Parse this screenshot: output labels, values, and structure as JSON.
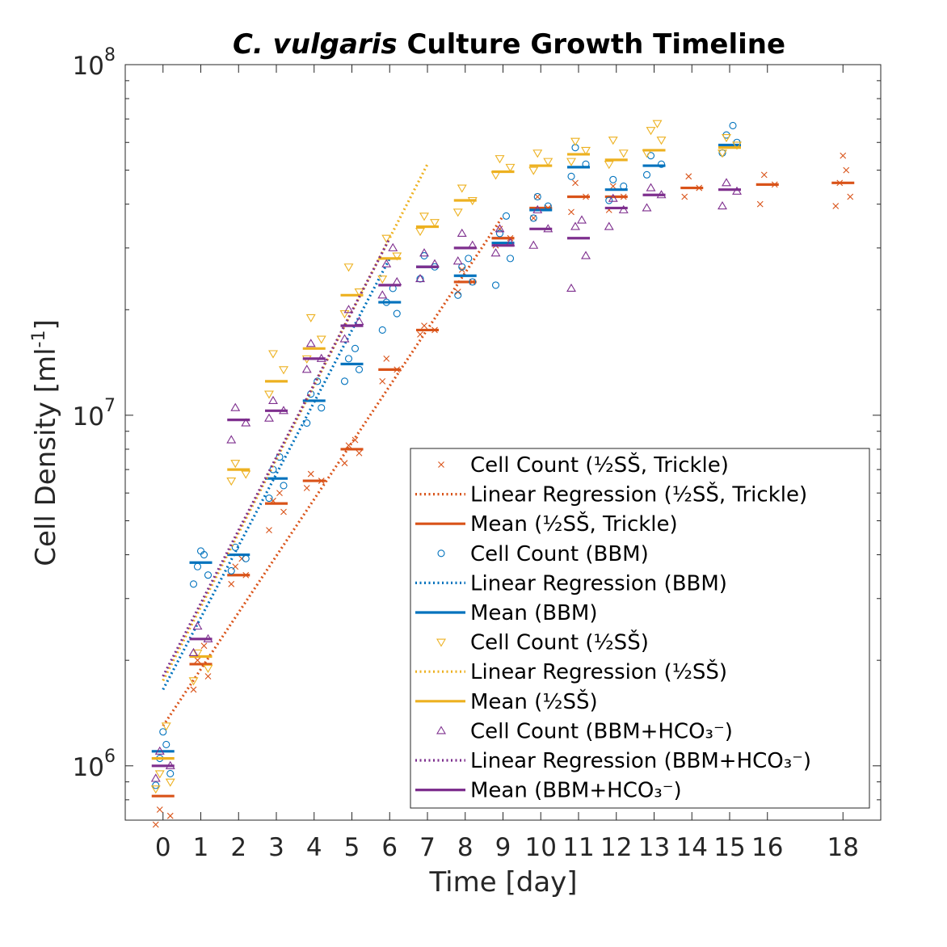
{
  "chart_data": {
    "type": "scatter",
    "title_italic": "C. vulgaris",
    "title_rest": " Culture Growth Timeline",
    "xlabel": "Time [day]",
    "ylabel_main": "Cell Density [ml",
    "ylabel_sup": "-1",
    "ylabel_end": "]",
    "y_scale": "log",
    "ylim": [
      700000,
      100000000
    ],
    "xlim": [
      -1,
      19
    ],
    "x_ticks": [
      0,
      1,
      2,
      3,
      4,
      5,
      6,
      7,
      8,
      9,
      10,
      11,
      12,
      13,
      14,
      15,
      16,
      18
    ],
    "y_ticks": [
      {
        "value": 1000000,
        "base": "10",
        "exp": "6"
      },
      {
        "value": 10000000,
        "base": "10",
        "exp": "7"
      },
      {
        "value": 100000000,
        "base": "10",
        "exp": "8"
      }
    ],
    "legend_position": "bottom-right",
    "series": [
      {
        "name": "½SŠ, Trickle",
        "color": "#D95319",
        "marker": "x",
        "means": [
          [
            0,
            820000
          ],
          [
            1,
            1950000
          ],
          [
            2,
            3500000
          ],
          [
            3,
            5600000
          ],
          [
            4,
            6500000
          ],
          [
            5,
            8000000
          ],
          [
            6,
            13500000
          ],
          [
            7,
            17500000
          ],
          [
            8,
            24000000
          ],
          [
            9,
            32000000
          ],
          [
            10,
            39000000
          ],
          [
            11,
            42000000
          ],
          [
            12,
            42000000
          ],
          [
            14,
            44500000
          ],
          [
            16,
            45500000
          ],
          [
            18,
            46000000
          ]
        ],
        "points": [
          [
            0,
            680000
          ],
          [
            0,
            720000
          ],
          [
            0,
            750000
          ],
          [
            1,
            1650000
          ],
          [
            1,
            1800000
          ],
          [
            1,
            2000000
          ],
          [
            1,
            2200000
          ],
          [
            2,
            3300000
          ],
          [
            2,
            3500000
          ],
          [
            2,
            3700000
          ],
          [
            2,
            3900000
          ],
          [
            3,
            4700000
          ],
          [
            3,
            5300000
          ],
          [
            3,
            5700000
          ],
          [
            3,
            6000000
          ],
          [
            4,
            6200000
          ],
          [
            4,
            6500000
          ],
          [
            4,
            6800000
          ],
          [
            5,
            7300000
          ],
          [
            5,
            7800000
          ],
          [
            5,
            8200000
          ],
          [
            5,
            8500000
          ],
          [
            6,
            12500000
          ],
          [
            6,
            13500000
          ],
          [
            6,
            14500000
          ],
          [
            7,
            17000000
          ],
          [
            7,
            17500000
          ],
          [
            7,
            18000000
          ],
          [
            8,
            22500000
          ],
          [
            8,
            24000000
          ],
          [
            8,
            26000000
          ],
          [
            9,
            30500000
          ],
          [
            9,
            32000000
          ],
          [
            9,
            34000000
          ],
          [
            10,
            36500000
          ],
          [
            10,
            39000000
          ],
          [
            10,
            42000000
          ],
          [
            11,
            38000000
          ],
          [
            11,
            42000000
          ],
          [
            11,
            46000000
          ],
          [
            12,
            38500000
          ],
          [
            12,
            42000000
          ],
          [
            12,
            45000000
          ],
          [
            14,
            42000000
          ],
          [
            14,
            44500000
          ],
          [
            14,
            48000000
          ],
          [
            16,
            40000000
          ],
          [
            16,
            45500000
          ],
          [
            16,
            48500000
          ],
          [
            18,
            39500000
          ],
          [
            18,
            42000000
          ],
          [
            18,
            46000000
          ],
          [
            18,
            50000000
          ],
          [
            18,
            55000000
          ]
        ],
        "regression": [
          [
            0,
            1300000
          ],
          [
            9,
            37000000
          ]
        ]
      },
      {
        "name": "BBM",
        "color": "#0072BD",
        "marker": "o",
        "means": [
          [
            0,
            1100000
          ],
          [
            1,
            3800000
          ],
          [
            2,
            4000000
          ],
          [
            3,
            6600000
          ],
          [
            4,
            11000000
          ],
          [
            5,
            14000000
          ],
          [
            6,
            21000000
          ],
          [
            7,
            26500000
          ],
          [
            8,
            25000000
          ],
          [
            9,
            31000000
          ],
          [
            10,
            38500000
          ],
          [
            11,
            51000000
          ],
          [
            12,
            44000000
          ],
          [
            13,
            51500000
          ],
          [
            15,
            59000000
          ]
        ],
        "points": [
          [
            0,
            880000
          ],
          [
            0,
            950000
          ],
          [
            0,
            1050000
          ],
          [
            0,
            1150000
          ],
          [
            0,
            1250000
          ],
          [
            1,
            3300000
          ],
          [
            1,
            3500000
          ],
          [
            1,
            3700000
          ],
          [
            1,
            4000000
          ],
          [
            1,
            4100000
          ],
          [
            2,
            3600000
          ],
          [
            2,
            3900000
          ],
          [
            2,
            4200000
          ],
          [
            3,
            5800000
          ],
          [
            3,
            6300000
          ],
          [
            3,
            7000000
          ],
          [
            3,
            7600000
          ],
          [
            4,
            9500000
          ],
          [
            4,
            10500000
          ],
          [
            4,
            11500000
          ],
          [
            4,
            12500000
          ],
          [
            5,
            12500000
          ],
          [
            5,
            13500000
          ],
          [
            5,
            14500000
          ],
          [
            5,
            15500000
          ],
          [
            6,
            17500000
          ],
          [
            6,
            19500000
          ],
          [
            6,
            21000000
          ],
          [
            6,
            23000000
          ],
          [
            7,
            24500000
          ],
          [
            7,
            26500000
          ],
          [
            7,
            28500000
          ],
          [
            8,
            22000000
          ],
          [
            8,
            24000000
          ],
          [
            8,
            26500000
          ],
          [
            8,
            28000000
          ],
          [
            9,
            23500000
          ],
          [
            9,
            28000000
          ],
          [
            9,
            33000000
          ],
          [
            9,
            37000000
          ],
          [
            10,
            36500000
          ],
          [
            10,
            39500000
          ],
          [
            10,
            42000000
          ],
          [
            11,
            48000000
          ],
          [
            11,
            52000000
          ],
          [
            11,
            58000000
          ],
          [
            12,
            41000000
          ],
          [
            12,
            45000000
          ],
          [
            12,
            47000000
          ],
          [
            13,
            48500000
          ],
          [
            13,
            52000000
          ],
          [
            13,
            55000000
          ],
          [
            15,
            56000000
          ],
          [
            15,
            60000000
          ],
          [
            15,
            63000000
          ],
          [
            15,
            67000000
          ]
        ],
        "regression": [
          [
            0,
            1650000
          ],
          [
            6,
            28000000
          ]
        ]
      },
      {
        "name": "½SŠ",
        "color": "#EDB120",
        "marker": "v",
        "means": [
          [
            0,
            1050000
          ],
          [
            1,
            2050000
          ],
          [
            2,
            7000000
          ],
          [
            3,
            12500000
          ],
          [
            4,
            15500000
          ],
          [
            5,
            22000000
          ],
          [
            6,
            28000000
          ],
          [
            7,
            34500000
          ],
          [
            8,
            41000000
          ],
          [
            9,
            49500000
          ],
          [
            10,
            51500000
          ],
          [
            11,
            55500000
          ],
          [
            12,
            53500000
          ],
          [
            13,
            57000000
          ],
          [
            15,
            58000000
          ]
        ],
        "points": [
          [
            0,
            860000
          ],
          [
            0,
            900000
          ],
          [
            0,
            950000
          ],
          [
            0,
            1300000
          ],
          [
            1,
            1750000
          ],
          [
            1,
            1900000
          ],
          [
            1,
            2100000
          ],
          [
            2,
            6500000
          ],
          [
            2,
            6800000
          ],
          [
            2,
            7300000
          ],
          [
            3,
            11500000
          ],
          [
            3,
            13500000
          ],
          [
            3,
            15000000
          ],
          [
            4,
            14500000
          ],
          [
            4,
            16500000
          ],
          [
            4,
            19000000
          ],
          [
            5,
            19500000
          ],
          [
            5,
            22500000
          ],
          [
            5,
            26500000
          ],
          [
            6,
            24500000
          ],
          [
            6,
            28500000
          ],
          [
            6,
            32000000
          ],
          [
            7,
            33500000
          ],
          [
            7,
            35500000
          ],
          [
            7,
            37000000
          ],
          [
            8,
            38000000
          ],
          [
            8,
            41000000
          ],
          [
            8,
            44500000
          ],
          [
            9,
            48500000
          ],
          [
            9,
            51000000
          ],
          [
            9,
            54000000
          ],
          [
            10,
            50000000
          ],
          [
            10,
            53000000
          ],
          [
            10,
            56000000
          ],
          [
            11,
            53000000
          ],
          [
            11,
            57000000
          ],
          [
            11,
            60500000
          ],
          [
            12,
            52000000
          ],
          [
            12,
            56000000
          ],
          [
            12,
            61000000
          ],
          [
            13,
            56000000
          ],
          [
            13,
            61000000
          ],
          [
            13,
            65000000
          ],
          [
            13,
            68000000
          ],
          [
            15,
            56000000
          ],
          [
            15,
            59000000
          ],
          [
            15,
            62000000
          ]
        ],
        "regression": [
          [
            0,
            1750000
          ],
          [
            7,
            52000000
          ]
        ]
      },
      {
        "name": "BBM+HCO₃⁻",
        "color": "#7E2F8E",
        "marker": "^",
        "means": [
          [
            0,
            1000000
          ],
          [
            1,
            2300000
          ],
          [
            2,
            9700000
          ],
          [
            3,
            10300000
          ],
          [
            4,
            14500000
          ],
          [
            5,
            18000000
          ],
          [
            6,
            23500000
          ],
          [
            7,
            26500000
          ],
          [
            8,
            30000000
          ],
          [
            9,
            30500000
          ],
          [
            10,
            34000000
          ],
          [
            11,
            32000000
          ],
          [
            12,
            39000000
          ],
          [
            13,
            42500000
          ],
          [
            15,
            44000000
          ]
        ],
        "points": [
          [
            0,
            920000
          ],
          [
            0,
            1000000
          ],
          [
            0,
            1100000
          ],
          [
            1,
            2100000
          ],
          [
            1,
            2300000
          ],
          [
            1,
            2500000
          ],
          [
            2,
            8500000
          ],
          [
            2,
            9500000
          ],
          [
            2,
            10500000
          ],
          [
            3,
            9800000
          ],
          [
            3,
            10300000
          ],
          [
            3,
            11000000
          ],
          [
            4,
            13500000
          ],
          [
            4,
            14500000
          ],
          [
            4,
            16000000
          ],
          [
            5,
            16500000
          ],
          [
            5,
            18500000
          ],
          [
            5,
            20000000
          ],
          [
            6,
            22000000
          ],
          [
            6,
            24000000
          ],
          [
            6,
            27000000
          ],
          [
            6,
            30000000
          ],
          [
            7,
            24500000
          ],
          [
            7,
            27000000
          ],
          [
            7,
            29000000
          ],
          [
            8,
            27500000
          ],
          [
            8,
            30500000
          ],
          [
            8,
            33000000
          ],
          [
            9,
            29000000
          ],
          [
            9,
            31000000
          ],
          [
            9,
            34000000
          ],
          [
            10,
            30500000
          ],
          [
            10,
            34000000
          ],
          [
            10,
            38500000
          ],
          [
            11,
            23000000
          ],
          [
            11,
            28500000
          ],
          [
            11,
            34500000
          ],
          [
            11,
            36000000
          ],
          [
            12,
            34500000
          ],
          [
            12,
            38500000
          ],
          [
            12,
            41500000
          ],
          [
            13,
            39000000
          ],
          [
            13,
            42500000
          ],
          [
            13,
            44500000
          ],
          [
            15,
            39500000
          ],
          [
            15,
            43500000
          ],
          [
            15,
            46000000
          ]
        ],
        "regression": [
          [
            0,
            1800000
          ],
          [
            6,
            32000000
          ]
        ]
      }
    ],
    "legend": [
      {
        "kind": "marker",
        "series": 0,
        "label": "Cell Count (½SŠ, Trickle)"
      },
      {
        "kind": "dotted",
        "series": 0,
        "label": "Linear Regression (½SŠ, Trickle)"
      },
      {
        "kind": "solid",
        "series": 0,
        "label": "Mean (½SŠ, Trickle)"
      },
      {
        "kind": "marker",
        "series": 1,
        "label": "Cell Count (BBM)"
      },
      {
        "kind": "dotted",
        "series": 1,
        "label": "Linear Regression (BBM)"
      },
      {
        "kind": "solid",
        "series": 1,
        "label": "Mean (BBM)"
      },
      {
        "kind": "marker",
        "series": 2,
        "label": "Cell Count (½SŠ)"
      },
      {
        "kind": "dotted",
        "series": 2,
        "label": "Linear Regression (½SŠ)"
      },
      {
        "kind": "solid",
        "series": 2,
        "label": "Mean (½SŠ)"
      },
      {
        "kind": "marker",
        "series": 3,
        "label": "Cell Count (BBM+HCO₃⁻)"
      },
      {
        "kind": "dotted",
        "series": 3,
        "label": "Linear Regression (BBM+HCO₃⁻)"
      },
      {
        "kind": "solid",
        "series": 3,
        "label": "Mean (BBM+HCO₃⁻)"
      }
    ]
  }
}
